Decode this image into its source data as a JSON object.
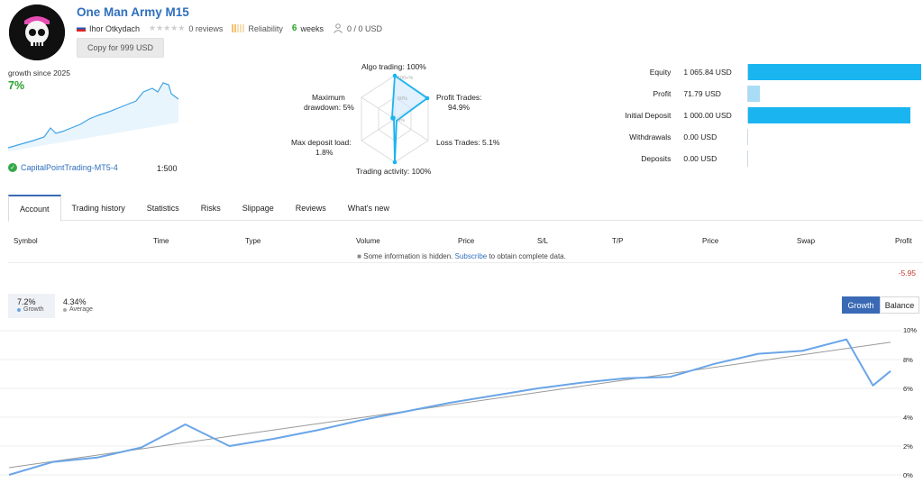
{
  "header": {
    "title": "One Man Army M15",
    "author": "Ihor Otkydach",
    "reviews": "0 reviews",
    "reliability": "Reliability",
    "weeks_num": "6",
    "weeks_label": "weeks",
    "subscribers": "0 / 0 USD",
    "copy_button": "Copy for 999 USD",
    "icons": [
      "skull-avatar",
      "flag-icon",
      "star-icon",
      "reliability-bars-icon",
      "subscribers-icon"
    ]
  },
  "summary": {
    "growth_label": "growth since 2025",
    "growth_value": "7%",
    "broker": "CapitalPointTrading-MT5-4",
    "leverage": "1:500"
  },
  "radar": {
    "algo": "Algo trading: 100%",
    "profit_trades_1": "Profit Trades:",
    "profit_trades_2": "94.9%",
    "loss_trades": "Loss Trades: 5.1%",
    "activity": "Trading activity: 100%",
    "deposit_load_1": "Max deposit load:",
    "deposit_load_2": "1.8%",
    "drawdown_1": "Maximum",
    "drawdown_2": "drawdown: 5%",
    "scale": [
      "100+%",
      "50%",
      "0%"
    ],
    "values": [
      100,
      94.9,
      5.1,
      100,
      1.8,
      5
    ]
  },
  "equity": [
    {
      "label": "Equity",
      "value": "1 065.84 USD",
      "fraction": 1.0
    },
    {
      "label": "Profit",
      "value": "71.79 USD",
      "fraction": 0.067
    },
    {
      "label": "Initial Deposit",
      "value": "1 000.00 USD",
      "fraction": 0.938
    },
    {
      "label": "Withdrawals",
      "value": "0.00 USD",
      "fraction": 0
    },
    {
      "label": "Deposits",
      "value": "0.00 USD",
      "fraction": 0
    }
  ],
  "tabs": [
    "Account",
    "Trading history",
    "Statistics",
    "Risks",
    "Slippage",
    "Reviews",
    "What's new"
  ],
  "table": {
    "headers": [
      "Symbol",
      "Time",
      "Type",
      "Volume",
      "Price",
      "S/L",
      "T/P",
      "Price",
      "Swap",
      "Profit"
    ],
    "note_pre": "Some information is hidden.",
    "note_link": "Subscribe",
    "note_post": "to obtain complete data.",
    "profit_total": "-5.95"
  },
  "growth_chart": {
    "growth_value": "7.2%",
    "growth_label": "Growth",
    "average_value": "4.34%",
    "average_label": "Average",
    "toggle_growth": "Growth",
    "toggle_balance": "Balance",
    "colors": {
      "growth": "#6aa5e8",
      "average": "#999999",
      "accent": "#3a6ab5"
    }
  },
  "chart_data": {
    "type": "line",
    "ylim": [
      0,
      10
    ],
    "yticks": [
      "10%",
      "8%",
      "6%",
      "4%",
      "2%",
      "0%"
    ],
    "grid": true,
    "series": [
      {
        "name": "Growth",
        "x": [
          0,
          5,
          10,
          15,
          20,
          25,
          30,
          35,
          40,
          45,
          50,
          55,
          60,
          65,
          70,
          75,
          80,
          85,
          90,
          95,
          98,
          100
        ],
        "values": [
          0,
          0.9,
          1.2,
          1.9,
          3.5,
          2.0,
          2.5,
          3.1,
          3.8,
          4.4,
          5.0,
          5.5,
          6.0,
          6.4,
          6.7,
          6.8,
          7.7,
          8.4,
          8.6,
          9.4,
          6.2,
          7.2
        ]
      },
      {
        "name": "Average",
        "x": [
          0,
          100
        ],
        "values": [
          0.5,
          9.2
        ]
      }
    ]
  }
}
